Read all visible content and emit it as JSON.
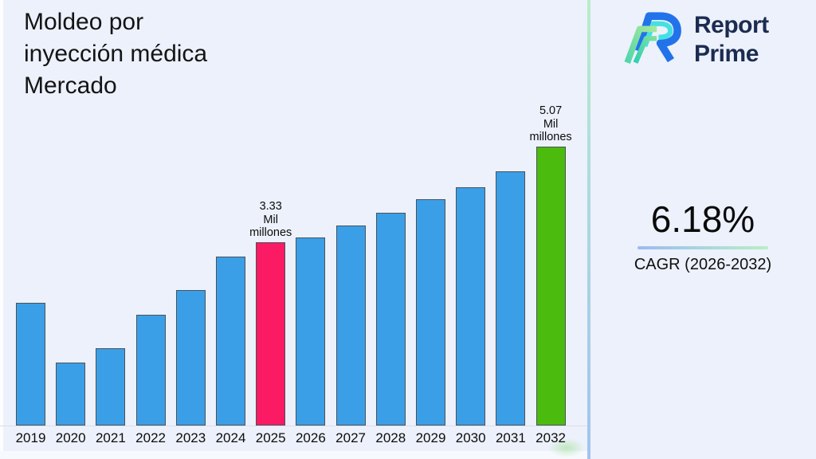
{
  "header": {
    "title_lines": [
      "Moldeo por",
      "inyección médica",
      "Mercado"
    ]
  },
  "logo": {
    "line1": "Report",
    "line2": "Prime",
    "colors": {
      "text": "#1c2b50",
      "blue": "#2273ea",
      "cyan": "#45e1e2",
      "mint": "#a8e89b",
      "teal": "#2fcfb2"
    }
  },
  "stats": {
    "cagr_value": "6.18%",
    "cagr_label": "CAGR (2026-2032)"
  },
  "chart_data": {
    "type": "bar",
    "title": "Moldeo por inyección médica Mercado",
    "unit": "Mil millones",
    "categories": [
      "2019",
      "2020",
      "2021",
      "2022",
      "2023",
      "2024",
      "2025",
      "2026",
      "2027",
      "2028",
      "2029",
      "2030",
      "2031",
      "2032"
    ],
    "values": [
      2.23,
      1.14,
      1.41,
      2.01,
      2.46,
      3.07,
      3.33,
      3.42,
      3.64,
      3.87,
      4.12,
      4.33,
      4.62,
      5.07
    ],
    "ylim": [
      0,
      5.5
    ],
    "grid": false,
    "legend": false,
    "bar_colors": {
      "default": "#3b9fe8",
      "2025": "#fb1a64",
      "2032": "#4bbb0e"
    },
    "annotations": [
      {
        "year": "2025",
        "lines": [
          "3.33",
          "Mil",
          "millones"
        ]
      },
      {
        "year": "2032",
        "lines": [
          "5.07",
          "Mil",
          "millones"
        ]
      }
    ]
  }
}
